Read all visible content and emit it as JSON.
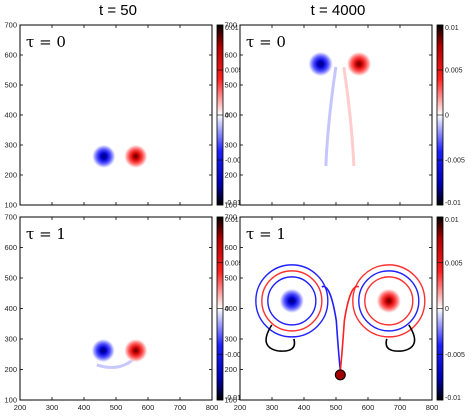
{
  "column_titles": [
    "t = 50",
    "t = 4000"
  ],
  "chart_data": [
    {
      "type": "heatmap",
      "panel_label": "τ = 0",
      "time": "t = 50",
      "xlim": [
        200,
        800
      ],
      "ylim": [
        100,
        700
      ],
      "xticks": [],
      "yticks": [
        100,
        200,
        300,
        400,
        500,
        600,
        700
      ],
      "colorbar": {
        "range": [
          -0.01,
          0.01
        ],
        "ticks": [
          "0.01",
          "0.005",
          "0",
          "-0.005",
          "-0.01"
        ]
      },
      "vortices": [
        {
          "x": 462,
          "y": 262,
          "value": -0.01,
          "radius": 38
        },
        {
          "x": 562,
          "y": 262,
          "value": 0.01,
          "radius": 38
        }
      ]
    },
    {
      "type": "heatmap",
      "panel_label": "τ = 0",
      "time": "t = 4000",
      "xlim": [
        200,
        800
      ],
      "ylim": [
        100,
        700
      ],
      "xticks": [],
      "yticks": [
        100,
        200,
        300,
        400,
        500,
        600,
        700
      ],
      "colorbar": {
        "range": [
          -0.01,
          0.01
        ],
        "ticks": [
          "0.01",
          "0.005",
          "0",
          "-0.005",
          "-0.01"
        ]
      },
      "vortices": [
        {
          "x": 452,
          "y": 570,
          "value": -0.01,
          "radius": 40
        },
        {
          "x": 572,
          "y": 570,
          "value": 0.01,
          "radius": 40
        }
      ]
    },
    {
      "type": "heatmap",
      "panel_label": "τ = 1",
      "time": "t = 50",
      "xlim": [
        200,
        800
      ],
      "ylim": [
        100,
        700
      ],
      "xticks": [
        200,
        300,
        400,
        500,
        600,
        700,
        800
      ],
      "yticks": [
        100,
        200,
        300,
        400,
        500,
        600,
        700
      ],
      "colorbar": {
        "range": [
          -0.01,
          0.01
        ],
        "ticks": [
          "0.01",
          "0.005",
          "0",
          "-0.005",
          "-0.01"
        ]
      },
      "vortices": [
        {
          "x": 460,
          "y": 262,
          "value": -0.01,
          "radius": 38
        },
        {
          "x": 562,
          "y": 262,
          "value": 0.01,
          "radius": 38
        }
      ]
    },
    {
      "type": "heatmap",
      "panel_label": "τ = 1",
      "time": "t = 4000",
      "xlim": [
        200,
        800
      ],
      "ylim": [
        100,
        700
      ],
      "xticks": [
        200,
        300,
        400,
        500,
        600,
        700,
        800
      ],
      "yticks": [
        100,
        200,
        300,
        400,
        500,
        600,
        700
      ],
      "colorbar": {
        "range": [
          -0.01,
          0.01
        ],
        "ticks": [
          "0.01",
          "0.005",
          "0",
          "-0.005",
          "-0.01"
        ]
      },
      "vortices": [
        {
          "x": 362,
          "y": 425,
          "value": -0.01,
          "radius": 40
        },
        {
          "x": 665,
          "y": 425,
          "value": 0.01,
          "radius": 40
        }
      ]
    }
  ]
}
